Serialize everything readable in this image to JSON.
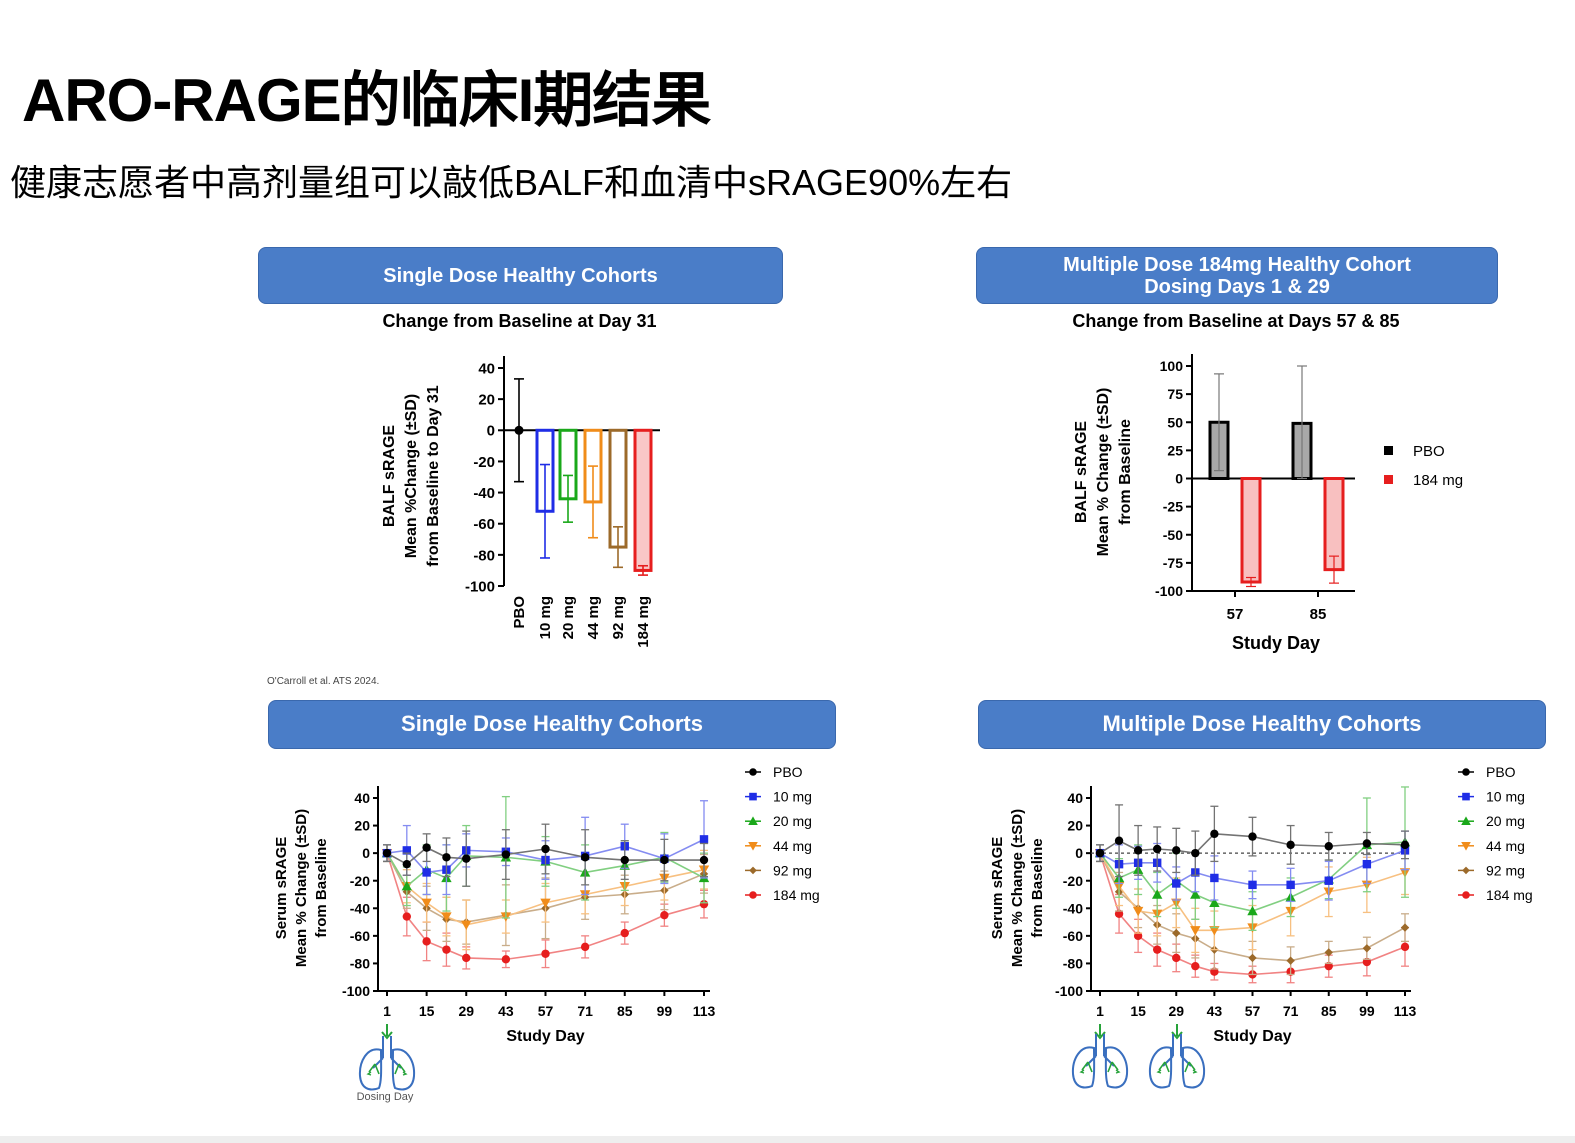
{
  "title": "ARO-RAGE的临床I期结果",
  "subtitle": "健康志愿者中高剂量组可以敲低BALF和血清中sRAGE90%左右",
  "citation": "O'Carroll et al. ATS 2024.",
  "colors": {
    "banner": "#4a7dc8",
    "pbo": "#000000",
    "d10": "#1f2de6",
    "d20": "#1aa81a",
    "d44": "#f08c1a",
    "d92": "#9c6a2a",
    "d184": "#e61e1e"
  },
  "panels": {
    "tl": {
      "banner": [
        "Single Dose Healthy Cohorts"
      ],
      "subtitle": "Change from Baseline at Day 31"
    },
    "tr": {
      "banner": [
        "Multiple Dose 184mg Healthy Cohort",
        "Dosing Days 1 & 29"
      ],
      "subtitle": "Change from Baseline at Days 57 & 85"
    },
    "bl": {
      "banner": [
        "Single Dose Healthy Cohorts"
      ],
      "icon_label": "Dosing Day"
    },
    "br": {
      "banner": [
        "Multiple Dose Healthy Cohorts"
      ]
    }
  },
  "chart_data": [
    {
      "id": "tl",
      "type": "bar",
      "title": "Change from Baseline at Day 31",
      "ylabel": [
        "BALF sRAGE",
        "Mean %Change (±SD)",
        "from Baseline to Day 31"
      ],
      "ylim": [
        -100,
        40
      ],
      "yticks": [
        40,
        20,
        0,
        -20,
        -40,
        -60,
        -80,
        -100
      ],
      "categories": [
        "PBO",
        "10 mg",
        "20 mg",
        "44 mg",
        "92 mg",
        "184 mg"
      ],
      "values": [
        0,
        -52,
        -44,
        -46,
        -75,
        -90
      ],
      "sd": [
        33,
        30,
        15,
        23,
        13,
        3
      ],
      "series_colors": [
        "pbo",
        "d10",
        "d20",
        "d44",
        "d92",
        "d184"
      ]
    },
    {
      "id": "tr",
      "type": "bar",
      "title": "Change from Baseline at Days 57 & 85",
      "xlabel": "Study Day",
      "ylabel": [
        "BALF sRAGE",
        "Mean % Change (±SD)",
        "from Baseline"
      ],
      "ylim": [
        -100,
        100
      ],
      "yticks": [
        100,
        75,
        50,
        25,
        0,
        -25,
        -50,
        -75,
        -100
      ],
      "categories": [
        "57",
        "85"
      ],
      "series": [
        {
          "name": "PBO",
          "color": "pbo",
          "values": [
            50,
            49
          ],
          "sd": [
            43,
            51
          ]
        },
        {
          "name": "184 mg",
          "color": "d184",
          "values": [
            -92,
            -81
          ],
          "sd": [
            4,
            12
          ]
        }
      ]
    },
    {
      "id": "bl",
      "type": "line",
      "xlabel": "Study Day",
      "ylabel": [
        "Serum sRAGE",
        "Mean % Change (±SD)",
        "from Baseline"
      ],
      "ylim": [
        -100,
        40
      ],
      "yticks": [
        40,
        20,
        0,
        -20,
        -40,
        -60,
        -80,
        -100
      ],
      "xticks": [
        1,
        15,
        29,
        43,
        57,
        71,
        85,
        99,
        113
      ],
      "x": [
        1,
        8,
        15,
        22,
        29,
        43,
        57,
        71,
        85,
        99,
        113
      ],
      "series": [
        {
          "name": "PBO",
          "color": "pbo",
          "marker": "circle",
          "values": [
            0,
            -8,
            4,
            -3,
            -4,
            -1,
            3,
            -3,
            -5,
            -5,
            -5
          ],
          "sd": [
            6,
            8,
            10,
            14,
            20,
            18,
            18,
            20,
            14,
            15,
            12
          ]
        },
        {
          "name": "10 mg",
          "color": "d10",
          "marker": "square",
          "values": [
            0,
            2,
            -14,
            -12,
            2,
            1,
            -5,
            -2,
            5,
            -4,
            10
          ],
          "sd": [
            6,
            18,
            16,
            18,
            12,
            10,
            14,
            28,
            16,
            18,
            28
          ]
        },
        {
          "name": "20 mg",
          "color": "d20",
          "marker": "triangle",
          "values": [
            0,
            -24,
            -12,
            -18,
            -2,
            -3,
            -6,
            -14,
            -9,
            -3,
            -18
          ],
          "sd": [
            6,
            14,
            18,
            24,
            22,
            44,
            18,
            20,
            18,
            18,
            18
          ]
        },
        {
          "name": "44 mg",
          "color": "d44",
          "marker": "tri-down",
          "values": [
            0,
            -24,
            -36,
            -46,
            -52,
            -46,
            -36,
            -30,
            -24,
            -18,
            -12
          ],
          "sd": [
            6,
            12,
            14,
            14,
            18,
            12,
            14,
            14,
            14,
            16,
            14
          ]
        },
        {
          "name": "92 mg",
          "color": "d92",
          "marker": "diamond",
          "values": [
            0,
            -28,
            -40,
            -48,
            -50,
            -45,
            -40,
            -32,
            -30,
            -27,
            -15
          ],
          "sd": [
            6,
            12,
            16,
            16,
            16,
            22,
            22,
            16,
            14,
            14,
            14
          ]
        },
        {
          "name": "184 mg",
          "color": "d184",
          "marker": "circle",
          "values": [
            0,
            -46,
            -64,
            -70,
            -76,
            -77,
            -73,
            -68,
            -58,
            -45,
            -37
          ],
          "sd": [
            6,
            14,
            14,
            12,
            8,
            6,
            10,
            8,
            8,
            8,
            10
          ]
        }
      ]
    },
    {
      "id": "br",
      "type": "line",
      "xlabel": "Study Day",
      "ylabel": [
        "Serum sRAGE",
        "Mean % Change (±SD)",
        "from Baseline"
      ],
      "ylim": [
        -100,
        40
      ],
      "yticks": [
        40,
        20,
        0,
        -20,
        -40,
        -60,
        -80,
        -100
      ],
      "xticks": [
        1,
        15,
        29,
        43,
        57,
        71,
        85,
        99,
        113
      ],
      "x": [
        1,
        8,
        15,
        22,
        29,
        36,
        43,
        57,
        71,
        85,
        99,
        113
      ],
      "series": [
        {
          "name": "PBO",
          "color": "pbo",
          "marker": "circle",
          "values": [
            0,
            9,
            2,
            3,
            2,
            0,
            14,
            12,
            6,
            5,
            7,
            6
          ],
          "sd": [
            6,
            26,
            18,
            16,
            16,
            16,
            20,
            14,
            14,
            10,
            8,
            10
          ]
        },
        {
          "name": "10 mg",
          "color": "d10",
          "marker": "square",
          "values": [
            0,
            -8,
            -7,
            -7,
            -22,
            -14,
            -18,
            -23,
            -23,
            -20,
            -8,
            2
          ],
          "sd": [
            6,
            14,
            12,
            14,
            12,
            14,
            16,
            10,
            12,
            14,
            14,
            14
          ]
        },
        {
          "name": "20 mg",
          "color": "d20",
          "marker": "triangle",
          "values": [
            0,
            -18,
            -12,
            -30,
            -20,
            -30,
            -36,
            -42,
            -32,
            -19,
            6,
            8
          ],
          "sd": [
            6,
            14,
            18,
            16,
            20,
            18,
            18,
            14,
            14,
            14,
            34,
            40
          ]
        },
        {
          "name": "44 mg",
          "color": "d44",
          "marker": "tri-down",
          "values": [
            0,
            -24,
            -42,
            -44,
            -36,
            -56,
            -56,
            -54,
            -42,
            -28,
            -23,
            -14
          ],
          "sd": [
            6,
            14,
            16,
            16,
            18,
            16,
            14,
            16,
            18,
            18,
            20,
            16
          ]
        },
        {
          "name": "92 mg",
          "color": "d92",
          "marker": "diamond",
          "values": [
            0,
            -28,
            -40,
            -52,
            -58,
            -62,
            -70,
            -76,
            -78,
            -72,
            -69,
            -54
          ],
          "sd": [
            6,
            14,
            14,
            14,
            14,
            14,
            14,
            12,
            10,
            8,
            8,
            10
          ]
        },
        {
          "name": "184 mg",
          "color": "d184",
          "marker": "circle",
          "values": [
            0,
            -44,
            -60,
            -70,
            -76,
            -82,
            -86,
            -88,
            -86,
            -82,
            -79,
            -68
          ],
          "sd": [
            6,
            14,
            12,
            12,
            10,
            8,
            6,
            6,
            8,
            8,
            10,
            14
          ]
        }
      ]
    }
  ]
}
